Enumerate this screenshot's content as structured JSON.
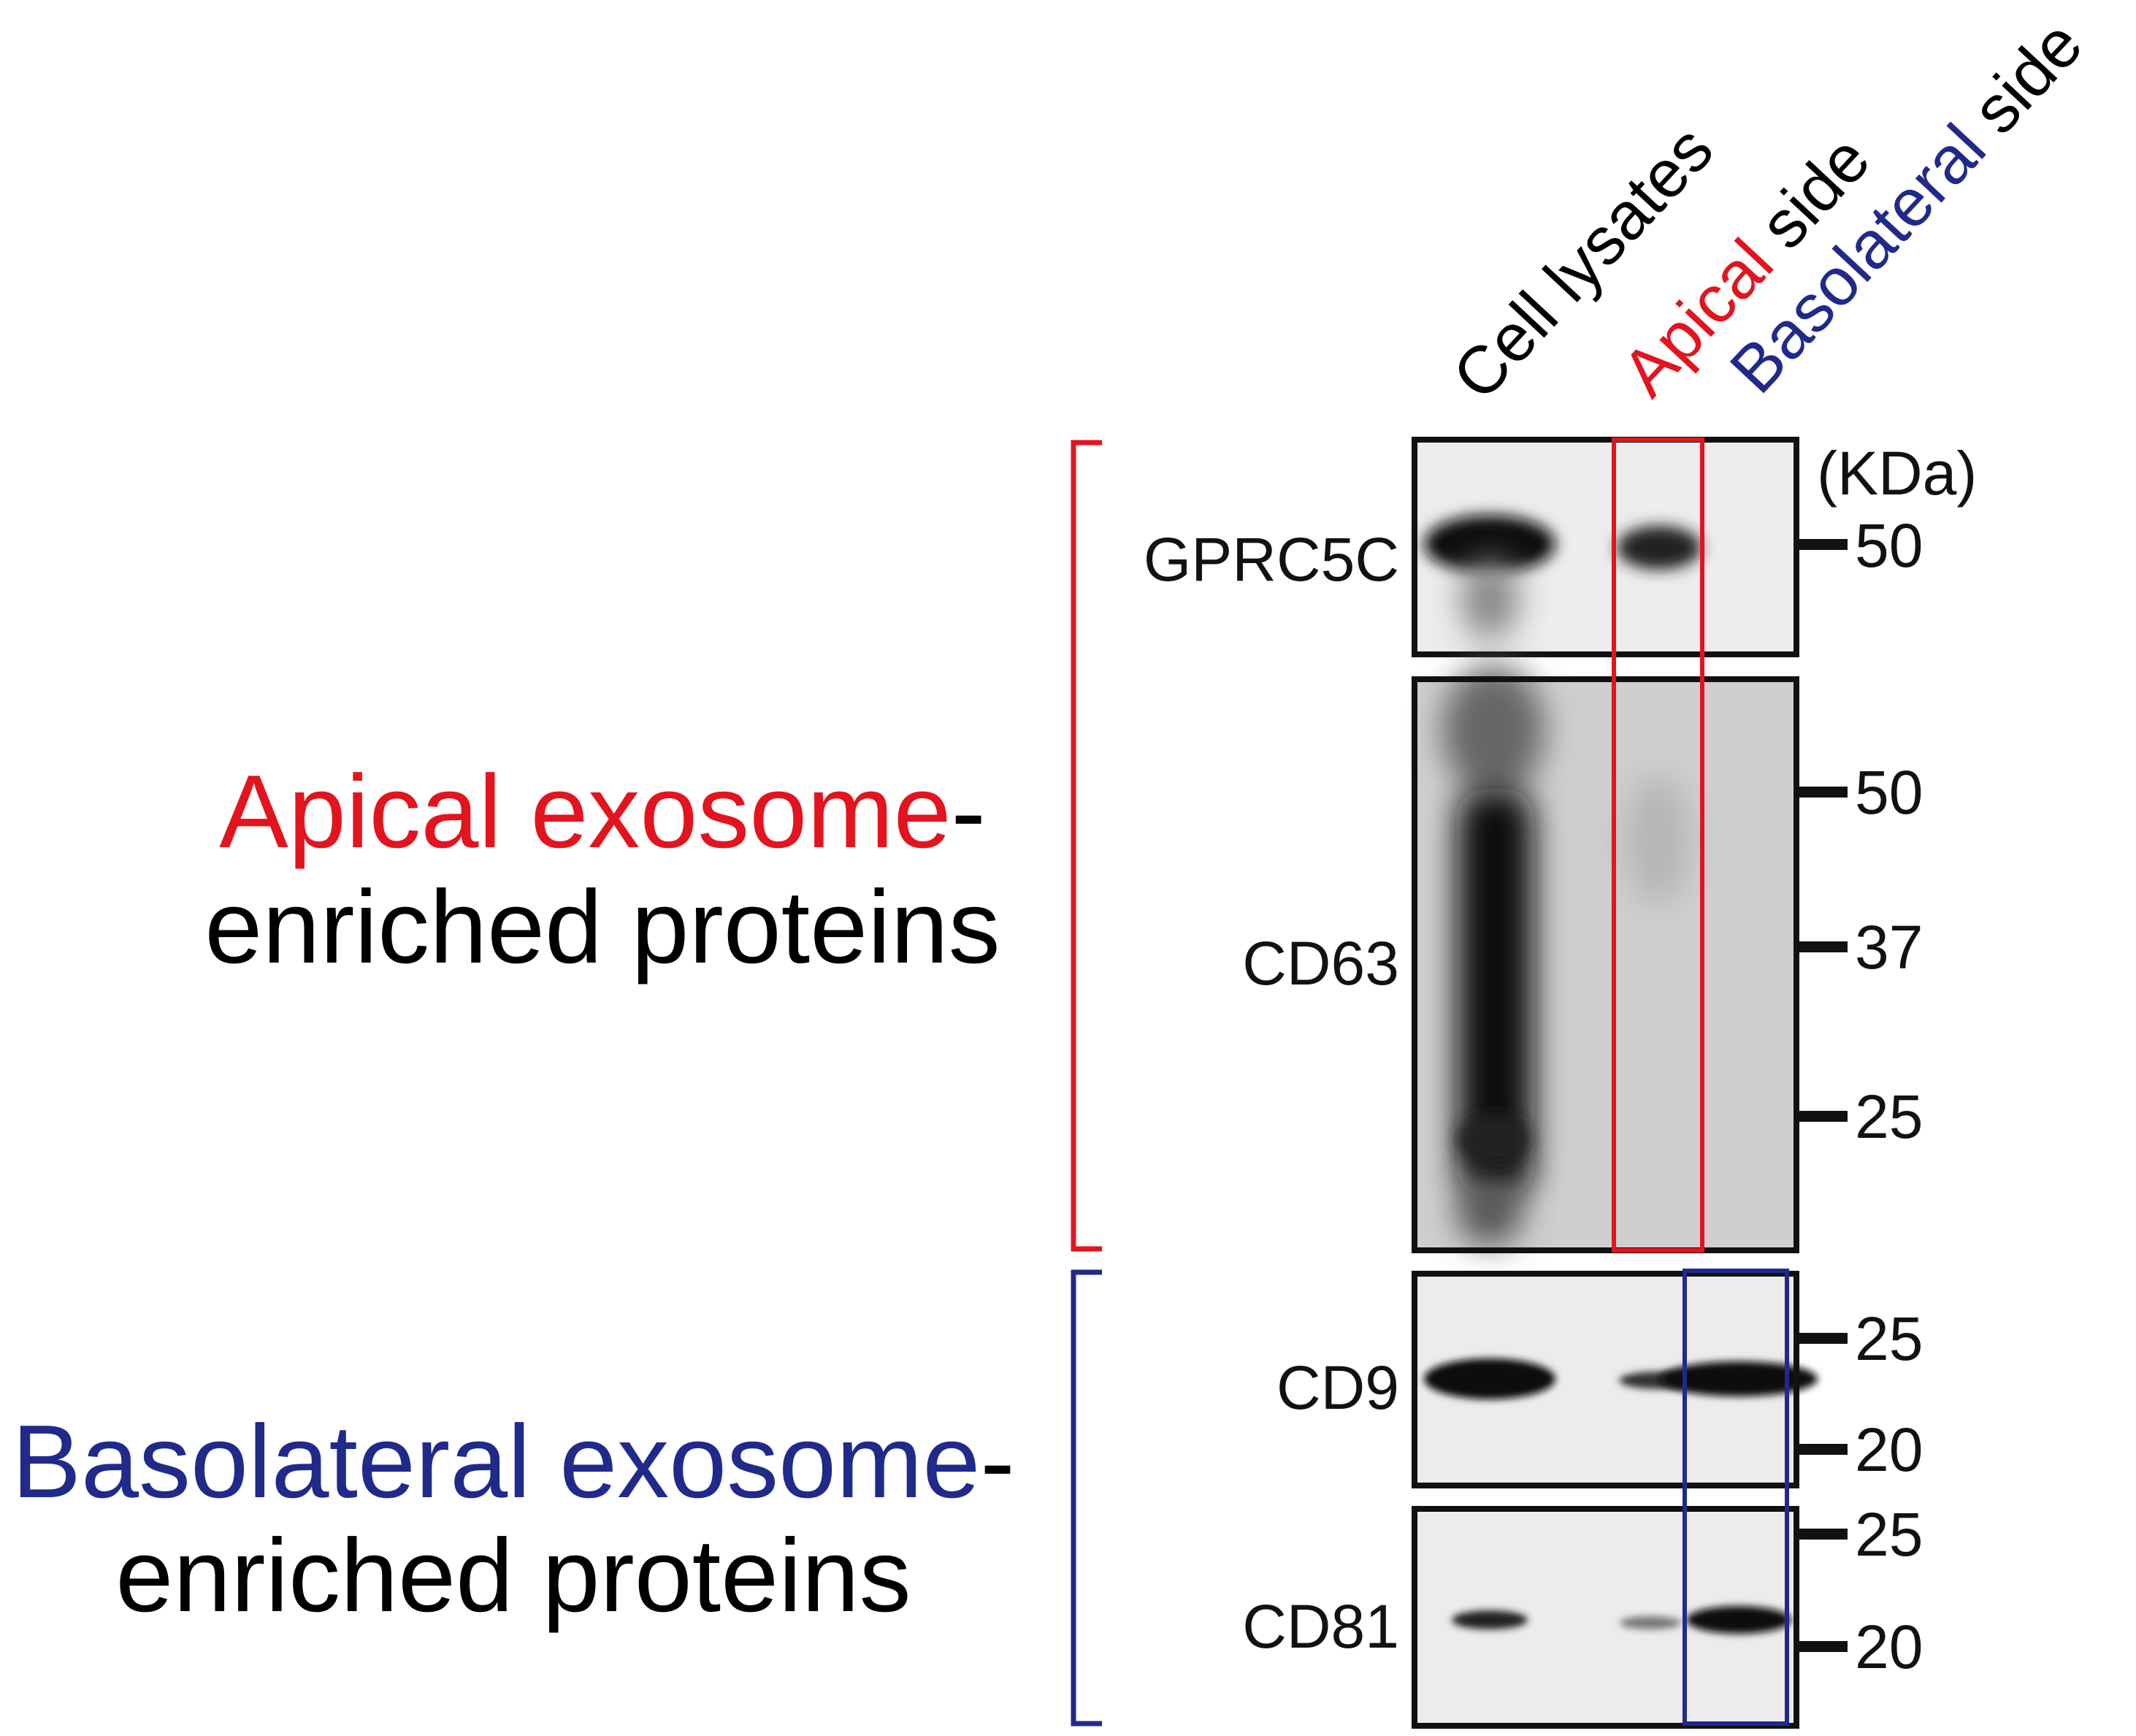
{
  "colors": {
    "apical": "#e3141d",
    "basolateral": "#1f2a8a",
    "text": "#111111"
  },
  "lanes": [
    {
      "label": "Cell lysates"
    },
    {
      "label_colored": "Apical",
      "label_rest": " side"
    },
    {
      "label_colored": "Basolateral",
      "label_rest": " side"
    }
  ],
  "groups": {
    "apical": {
      "line1_colored": "Apical exosome",
      "line1_rest": "-",
      "line2": "enriched proteins"
    },
    "basolateral": {
      "line1_colored": "Basolateral exosome",
      "line1_rest": "-",
      "line2": "enriched proteins"
    }
  },
  "unit": "(KDa)",
  "panels": [
    {
      "protein": "GPRC5C",
      "markers": [
        "50"
      ]
    },
    {
      "protein": "CD63",
      "markers": [
        "50",
        "37",
        "25"
      ]
    },
    {
      "protein": "CD9",
      "markers": [
        "25",
        "20"
      ]
    },
    {
      "protein": "CD81",
      "markers": [
        "25",
        "20"
      ]
    }
  ]
}
